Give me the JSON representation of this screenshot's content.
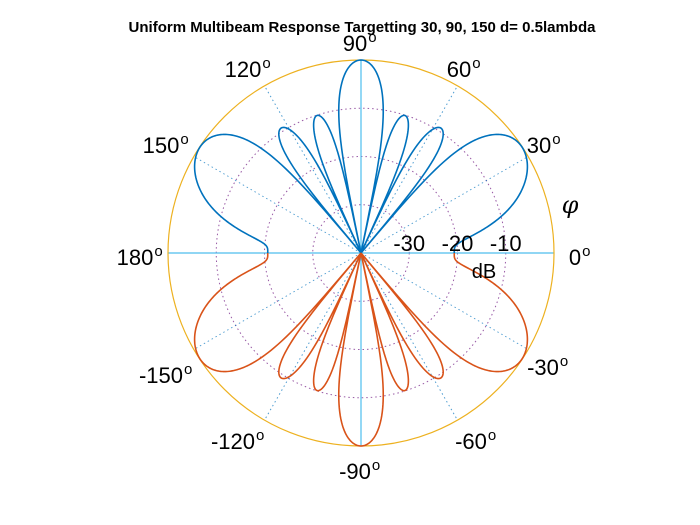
{
  "chart_data": {
    "type": "polar-line",
    "title": "Uniform Multibeam Response Targetting 30, 90, 150 d= 0.5lambda",
    "angle_label": "φ",
    "radial_unit": "dB",
    "radial_ticks": [
      "-30",
      "-20",
      "-10"
    ],
    "radial_range_db": [
      -40,
      0
    ],
    "angle_ticks": [
      {
        "deg": 90,
        "label": "90",
        "sup": "o"
      },
      {
        "deg": 60,
        "label": "60",
        "sup": "o"
      },
      {
        "deg": 30,
        "label": "30",
        "sup": "o"
      },
      {
        "deg": 0,
        "label": "0",
        "sup": "o"
      },
      {
        "deg": -30,
        "label": "-30",
        "sup": "o"
      },
      {
        "deg": -60,
        "label": "-60",
        "sup": "o"
      },
      {
        "deg": -90,
        "label": "-90",
        "sup": "o"
      },
      {
        "deg": -120,
        "label": "-120",
        "sup": "o"
      },
      {
        "deg": -150,
        "label": "-150",
        "sup": "o"
      },
      {
        "deg": 180,
        "label": "180",
        "sup": "o"
      },
      {
        "deg": 150,
        "label": "150",
        "sup": "o"
      },
      {
        "deg": 120,
        "label": "120",
        "sup": "o"
      }
    ],
    "beams_deg": [
      30,
      90,
      150
    ],
    "lobe_peaks_db": [
      {
        "deg": 90,
        "db": 0
      },
      {
        "deg": 78,
        "db": -6
      },
      {
        "deg": 68,
        "db": -6
      },
      {
        "deg": 57,
        "db": -5
      },
      {
        "deg": 45,
        "db": -4
      },
      {
        "deg": 30,
        "db": 0
      },
      {
        "deg": 102,
        "db": -6
      },
      {
        "deg": 112,
        "db": -6
      },
      {
        "deg": 123,
        "db": -5
      },
      {
        "deg": 135,
        "db": -4
      },
      {
        "deg": 150,
        "db": 0
      }
    ],
    "series": [
      {
        "color": "#0072BD",
        "range_deg": [
          0,
          180
        ]
      },
      {
        "color": "#D95319",
        "range_deg": [
          -180,
          0
        ]
      }
    ],
    "grid": true,
    "colors": {
      "outer_circle": "#EDB120",
      "grid_dotted": "#7E2F8E",
      "spokes": "#4DBEEE"
    }
  }
}
